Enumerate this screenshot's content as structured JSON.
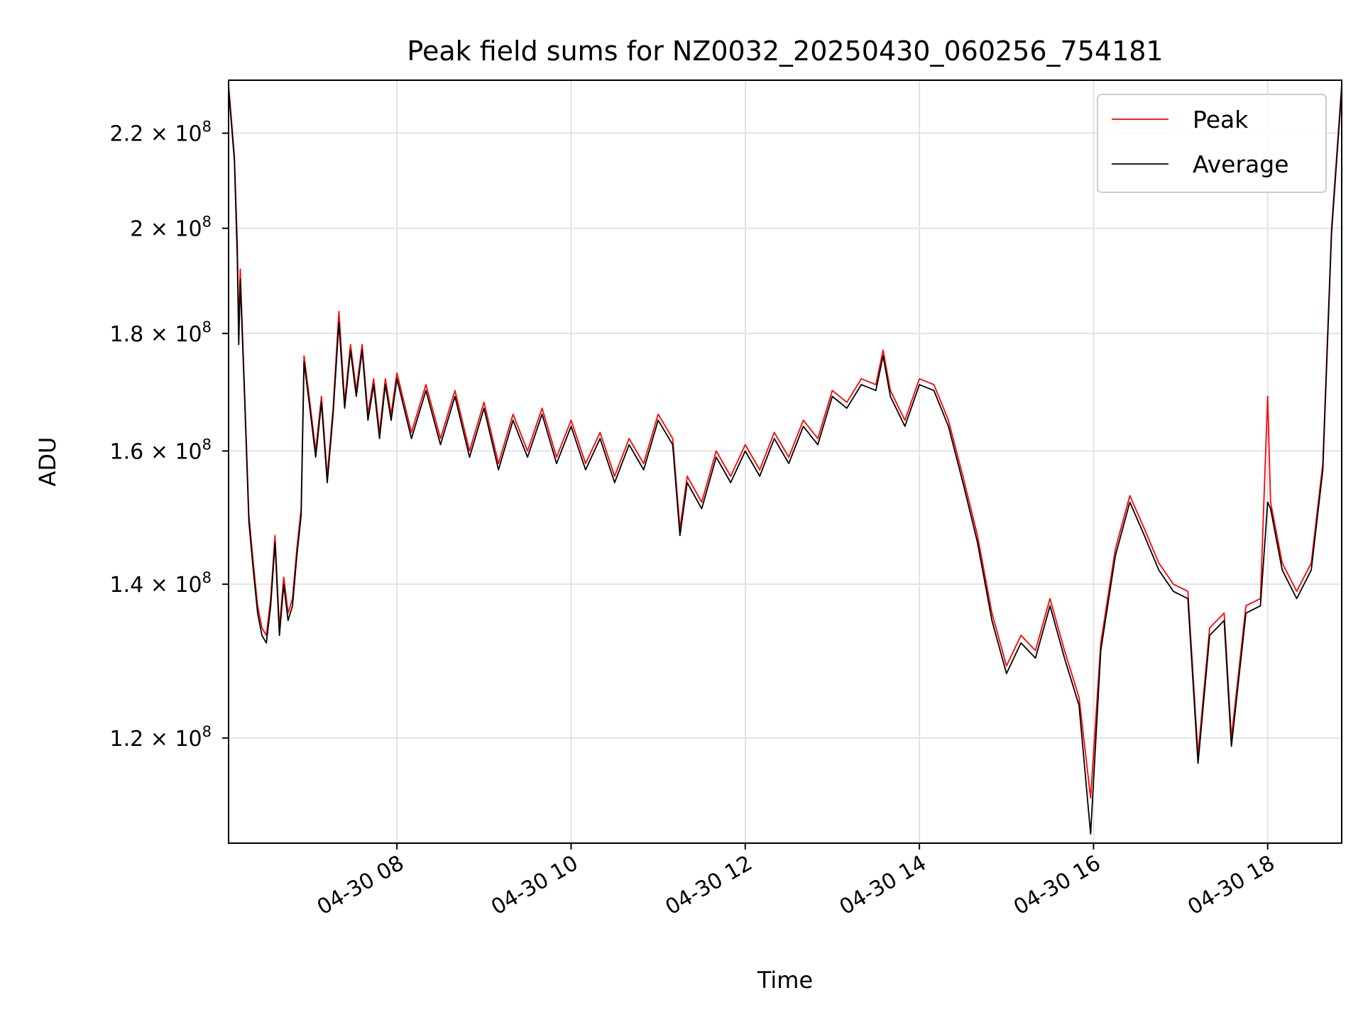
{
  "chart_data": {
    "type": "line",
    "title": "Peak field sums for NZ0032_20250430_060256_754181",
    "xlabel": "Time",
    "ylabel": "ADU",
    "yscale": "log",
    "ylim": [
      108000000,
      232000000
    ],
    "xlim": [
      "2025-04-30 06:04",
      "2025-04-30 18:51"
    ],
    "grid": true,
    "legend_position": "top-right",
    "x_ticks": [
      {
        "value": "2025-04-30 08:00",
        "label": "04-30 08"
      },
      {
        "value": "2025-04-30 10:00",
        "label": "04-30 10"
      },
      {
        "value": "2025-04-30 12:00",
        "label": "04-30 12"
      },
      {
        "value": "2025-04-30 14:00",
        "label": "04-30 14"
      },
      {
        "value": "2025-04-30 16:00",
        "label": "04-30 16"
      },
      {
        "value": "2025-04-30 18:00",
        "label": "04-30 18"
      }
    ],
    "y_ticks": [
      {
        "value": 120000000,
        "base": "1.2",
        "exp": "8"
      },
      {
        "value": 140000000,
        "base": "1.4",
        "exp": "8"
      },
      {
        "value": 160000000,
        "base": "1.6",
        "exp": "8"
      },
      {
        "value": 180000000,
        "base": "1.8",
        "exp": "8"
      },
      {
        "value": 200000000,
        "base": "2",
        "exp": "8"
      },
      {
        "value": 220000000,
        "base": "2.2",
        "exp": "8"
      }
    ],
    "series": [
      {
        "name": "Peak",
        "color": "#ff0000",
        "points": [
          [
            "2025-04-30 06:04",
            231000000
          ],
          [
            "2025-04-30 06:08",
            215000000
          ],
          [
            "2025-04-30 06:10",
            197000000
          ],
          [
            "2025-04-30 06:11",
            180000000
          ],
          [
            "2025-04-30 06:12",
            192000000
          ],
          [
            "2025-04-30 06:15",
            170000000
          ],
          [
            "2025-04-30 06:18",
            150000000
          ],
          [
            "2025-04-30 06:21",
            143000000
          ],
          [
            "2025-04-30 06:24",
            137000000
          ],
          [
            "2025-04-30 06:27",
            134000000
          ],
          [
            "2025-04-30 06:30",
            133000000
          ],
          [
            "2025-04-30 06:33",
            138000000
          ],
          [
            "2025-04-30 06:36",
            147000000
          ],
          [
            "2025-04-30 06:39",
            134000000
          ],
          [
            "2025-04-30 06:42",
            141000000
          ],
          [
            "2025-04-30 06:45",
            136000000
          ],
          [
            "2025-04-30 06:48",
            138000000
          ],
          [
            "2025-04-30 06:51",
            145000000
          ],
          [
            "2025-04-30 06:54",
            151000000
          ],
          [
            "2025-04-30 06:56",
            176000000
          ],
          [
            "2025-04-30 07:00",
            168000000
          ],
          [
            "2025-04-30 07:04",
            160000000
          ],
          [
            "2025-04-30 07:08",
            169000000
          ],
          [
            "2025-04-30 07:12",
            156000000
          ],
          [
            "2025-04-30 07:16",
            167000000
          ],
          [
            "2025-04-30 07:20",
            184000000
          ],
          [
            "2025-04-30 07:24",
            168000000
          ],
          [
            "2025-04-30 07:28",
            178000000
          ],
          [
            "2025-04-30 07:32",
            170000000
          ],
          [
            "2025-04-30 07:36",
            178000000
          ],
          [
            "2025-04-30 07:40",
            166000000
          ],
          [
            "2025-04-30 07:44",
            172000000
          ],
          [
            "2025-04-30 07:48",
            163000000
          ],
          [
            "2025-04-30 07:52",
            172000000
          ],
          [
            "2025-04-30 07:56",
            166000000
          ],
          [
            "2025-04-30 08:00",
            173000000
          ],
          [
            "2025-04-30 08:10",
            163000000
          ],
          [
            "2025-04-30 08:20",
            171000000
          ],
          [
            "2025-04-30 08:30",
            162000000
          ],
          [
            "2025-04-30 08:40",
            170000000
          ],
          [
            "2025-04-30 08:50",
            160000000
          ],
          [
            "2025-04-30 09:00",
            168000000
          ],
          [
            "2025-04-30 09:10",
            158000000
          ],
          [
            "2025-04-30 09:20",
            166000000
          ],
          [
            "2025-04-30 09:30",
            160000000
          ],
          [
            "2025-04-30 09:40",
            167000000
          ],
          [
            "2025-04-30 09:50",
            159000000
          ],
          [
            "2025-04-30 10:00",
            165000000
          ],
          [
            "2025-04-30 10:10",
            158000000
          ],
          [
            "2025-04-30 10:20",
            163000000
          ],
          [
            "2025-04-30 10:30",
            156000000
          ],
          [
            "2025-04-30 10:40",
            162000000
          ],
          [
            "2025-04-30 10:50",
            158000000
          ],
          [
            "2025-04-30 11:00",
            166000000
          ],
          [
            "2025-04-30 11:10",
            162000000
          ],
          [
            "2025-04-30 11:15",
            148000000
          ],
          [
            "2025-04-30 11:20",
            156000000
          ],
          [
            "2025-04-30 11:30",
            152000000
          ],
          [
            "2025-04-30 11:40",
            160000000
          ],
          [
            "2025-04-30 11:50",
            156000000
          ],
          [
            "2025-04-30 12:00",
            161000000
          ],
          [
            "2025-04-30 12:10",
            157000000
          ],
          [
            "2025-04-30 12:20",
            163000000
          ],
          [
            "2025-04-30 12:30",
            159000000
          ],
          [
            "2025-04-30 12:40",
            165000000
          ],
          [
            "2025-04-30 12:50",
            162000000
          ],
          [
            "2025-04-30 13:00",
            170000000
          ],
          [
            "2025-04-30 13:10",
            168000000
          ],
          [
            "2025-04-30 13:20",
            172000000
          ],
          [
            "2025-04-30 13:30",
            171000000
          ],
          [
            "2025-04-30 13:35",
            177000000
          ],
          [
            "2025-04-30 13:40",
            170000000
          ],
          [
            "2025-04-30 13:50",
            165000000
          ],
          [
            "2025-04-30 14:00",
            172000000
          ],
          [
            "2025-04-30 14:10",
            171000000
          ],
          [
            "2025-04-30 14:20",
            165000000
          ],
          [
            "2025-04-30 14:30",
            156000000
          ],
          [
            "2025-04-30 14:40",
            147000000
          ],
          [
            "2025-04-30 14:50",
            136000000
          ],
          [
            "2025-04-30 15:00",
            129000000
          ],
          [
            "2025-04-30 15:10",
            133000000
          ],
          [
            "2025-04-30 15:20",
            131000000
          ],
          [
            "2025-04-30 15:30",
            138000000
          ],
          [
            "2025-04-30 15:40",
            131000000
          ],
          [
            "2025-04-30 15:50",
            125000000
          ],
          [
            "2025-04-30 15:58",
            113000000
          ],
          [
            "2025-04-30 16:05",
            132000000
          ],
          [
            "2025-04-30 16:15",
            145000000
          ],
          [
            "2025-04-30 16:25",
            153000000
          ],
          [
            "2025-04-30 16:35",
            148000000
          ],
          [
            "2025-04-30 16:45",
            143000000
          ],
          [
            "2025-04-30 16:55",
            140000000
          ],
          [
            "2025-04-30 17:05",
            139000000
          ],
          [
            "2025-04-30 17:12",
            118000000
          ],
          [
            "2025-04-30 17:20",
            134000000
          ],
          [
            "2025-04-30 17:30",
            136000000
          ],
          [
            "2025-04-30 17:35",
            120000000
          ],
          [
            "2025-04-30 17:45",
            137000000
          ],
          [
            "2025-04-30 17:55",
            138000000
          ],
          [
            "2025-04-30 18:00",
            169000000
          ],
          [
            "2025-04-30 18:02",
            152000000
          ],
          [
            "2025-04-30 18:10",
            143000000
          ],
          [
            "2025-04-30 18:20",
            139000000
          ],
          [
            "2025-04-30 18:30",
            143000000
          ],
          [
            "2025-04-30 18:38",
            158000000
          ],
          [
            "2025-04-30 18:44",
            200000000
          ],
          [
            "2025-04-30 18:51",
            231000000
          ]
        ]
      },
      {
        "name": "Average",
        "color": "#000000",
        "points": [
          [
            "2025-04-30 06:04",
            230000000
          ],
          [
            "2025-04-30 06:08",
            214000000
          ],
          [
            "2025-04-30 06:10",
            194000000
          ],
          [
            "2025-04-30 06:11",
            178000000
          ],
          [
            "2025-04-30 06:12",
            190000000
          ],
          [
            "2025-04-30 06:15",
            169000000
          ],
          [
            "2025-04-30 06:18",
            149000000
          ],
          [
            "2025-04-30 06:21",
            142000000
          ],
          [
            "2025-04-30 06:24",
            136000000
          ],
          [
            "2025-04-30 06:27",
            133000000
          ],
          [
            "2025-04-30 06:30",
            132000000
          ],
          [
            "2025-04-30 06:33",
            137000000
          ],
          [
            "2025-04-30 06:36",
            146000000
          ],
          [
            "2025-04-30 06:39",
            133000000
          ],
          [
            "2025-04-30 06:42",
            140000000
          ],
          [
            "2025-04-30 06:45",
            135000000
          ],
          [
            "2025-04-30 06:48",
            137000000
          ],
          [
            "2025-04-30 06:51",
            144000000
          ],
          [
            "2025-04-30 06:54",
            150000000
          ],
          [
            "2025-04-30 06:56",
            175000000
          ],
          [
            "2025-04-30 07:00",
            167000000
          ],
          [
            "2025-04-30 07:04",
            159000000
          ],
          [
            "2025-04-30 07:08",
            168000000
          ],
          [
            "2025-04-30 07:12",
            155000000
          ],
          [
            "2025-04-30 07:16",
            166000000
          ],
          [
            "2025-04-30 07:20",
            182000000
          ],
          [
            "2025-04-30 07:24",
            167000000
          ],
          [
            "2025-04-30 07:28",
            177000000
          ],
          [
            "2025-04-30 07:32",
            169000000
          ],
          [
            "2025-04-30 07:36",
            177000000
          ],
          [
            "2025-04-30 07:40",
            165000000
          ],
          [
            "2025-04-30 07:44",
            171000000
          ],
          [
            "2025-04-30 07:48",
            162000000
          ],
          [
            "2025-04-30 07:52",
            171000000
          ],
          [
            "2025-04-30 07:56",
            165000000
          ],
          [
            "2025-04-30 08:00",
            172000000
          ],
          [
            "2025-04-30 08:10",
            162000000
          ],
          [
            "2025-04-30 08:20",
            170000000
          ],
          [
            "2025-04-30 08:30",
            161000000
          ],
          [
            "2025-04-30 08:40",
            169000000
          ],
          [
            "2025-04-30 08:50",
            159000000
          ],
          [
            "2025-04-30 09:00",
            167000000
          ],
          [
            "2025-04-30 09:10",
            157000000
          ],
          [
            "2025-04-30 09:20",
            165000000
          ],
          [
            "2025-04-30 09:30",
            159000000
          ],
          [
            "2025-04-30 09:40",
            166000000
          ],
          [
            "2025-04-30 09:50",
            158000000
          ],
          [
            "2025-04-30 10:00",
            164000000
          ],
          [
            "2025-04-30 10:10",
            157000000
          ],
          [
            "2025-04-30 10:20",
            162000000
          ],
          [
            "2025-04-30 10:30",
            155000000
          ],
          [
            "2025-04-30 10:40",
            161000000
          ],
          [
            "2025-04-30 10:50",
            157000000
          ],
          [
            "2025-04-30 11:00",
            165000000
          ],
          [
            "2025-04-30 11:10",
            161000000
          ],
          [
            "2025-04-30 11:15",
            147000000
          ],
          [
            "2025-04-30 11:20",
            155000000
          ],
          [
            "2025-04-30 11:30",
            151000000
          ],
          [
            "2025-04-30 11:40",
            159000000
          ],
          [
            "2025-04-30 11:50",
            155000000
          ],
          [
            "2025-04-30 12:00",
            160000000
          ],
          [
            "2025-04-30 12:10",
            156000000
          ],
          [
            "2025-04-30 12:20",
            162000000
          ],
          [
            "2025-04-30 12:30",
            158000000
          ],
          [
            "2025-04-30 12:40",
            164000000
          ],
          [
            "2025-04-30 12:50",
            161000000
          ],
          [
            "2025-04-30 13:00",
            169000000
          ],
          [
            "2025-04-30 13:10",
            167000000
          ],
          [
            "2025-04-30 13:20",
            171000000
          ],
          [
            "2025-04-30 13:30",
            170000000
          ],
          [
            "2025-04-30 13:35",
            176000000
          ],
          [
            "2025-04-30 13:40",
            169000000
          ],
          [
            "2025-04-30 13:50",
            164000000
          ],
          [
            "2025-04-30 14:00",
            171000000
          ],
          [
            "2025-04-30 14:10",
            170000000
          ],
          [
            "2025-04-30 14:20",
            164000000
          ],
          [
            "2025-04-30 14:30",
            155000000
          ],
          [
            "2025-04-30 14:40",
            146000000
          ],
          [
            "2025-04-30 14:50",
            135000000
          ],
          [
            "2025-04-30 15:00",
            128000000
          ],
          [
            "2025-04-30 15:10",
            132000000
          ],
          [
            "2025-04-30 15:20",
            130000000
          ],
          [
            "2025-04-30 15:30",
            137000000
          ],
          [
            "2025-04-30 15:40",
            130000000
          ],
          [
            "2025-04-30 15:50",
            124000000
          ],
          [
            "2025-04-30 15:58",
            109000000
          ],
          [
            "2025-04-30 16:05",
            131000000
          ],
          [
            "2025-04-30 16:15",
            144000000
          ],
          [
            "2025-04-30 16:25",
            152000000
          ],
          [
            "2025-04-30 16:35",
            147000000
          ],
          [
            "2025-04-30 16:45",
            142000000
          ],
          [
            "2025-04-30 16:55",
            139000000
          ],
          [
            "2025-04-30 17:05",
            138000000
          ],
          [
            "2025-04-30 17:12",
            117000000
          ],
          [
            "2025-04-30 17:20",
            133000000
          ],
          [
            "2025-04-30 17:30",
            135000000
          ],
          [
            "2025-04-30 17:35",
            119000000
          ],
          [
            "2025-04-30 17:45",
            136000000
          ],
          [
            "2025-04-30 17:55",
            137000000
          ],
          [
            "2025-04-30 18:00",
            152000000
          ],
          [
            "2025-04-30 18:02",
            151000000
          ],
          [
            "2025-04-30 18:10",
            142000000
          ],
          [
            "2025-04-30 18:20",
            138000000
          ],
          [
            "2025-04-30 18:30",
            142000000
          ],
          [
            "2025-04-30 18:38",
            157000000
          ],
          [
            "2025-04-30 18:44",
            199000000
          ],
          [
            "2025-04-30 18:51",
            230000000
          ]
        ]
      }
    ]
  }
}
